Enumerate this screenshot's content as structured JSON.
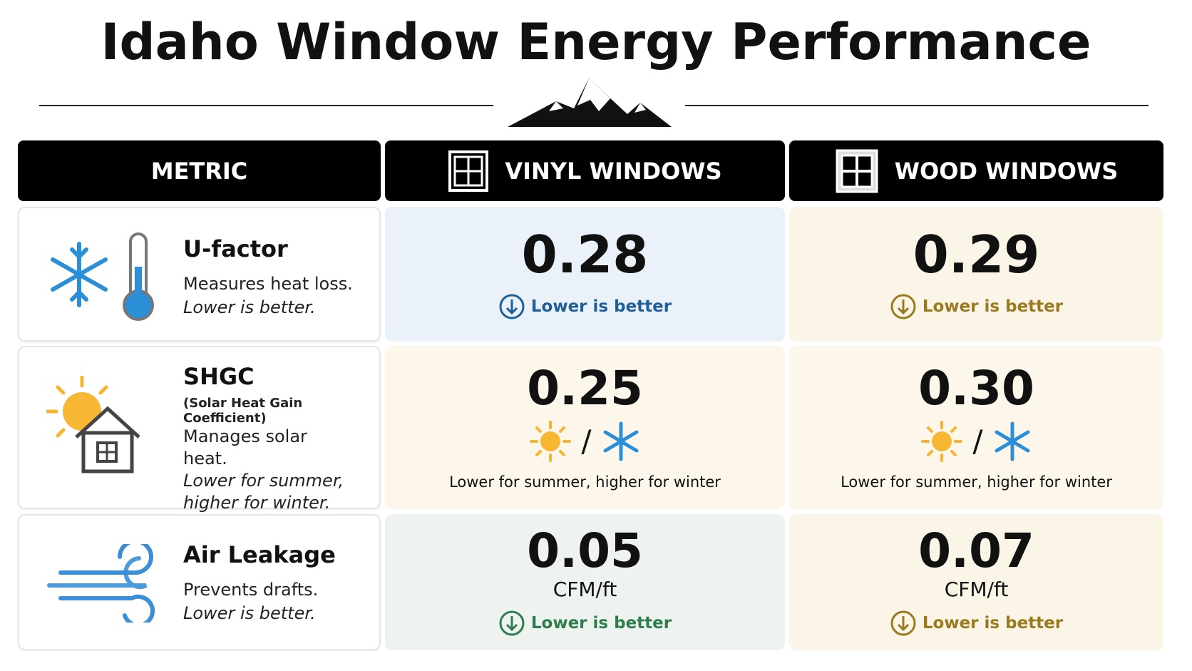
{
  "title": "Idaho Window Energy Performance",
  "table": {
    "headers": [
      "METRIC",
      "VINYL WINDOWS",
      "WOOD WINDOWS"
    ],
    "rows": [
      {
        "metric": "U-factor",
        "description": "Measures heat loss.",
        "note": "Lower is better.",
        "vinyl": {
          "value": "0.28",
          "caption": "Lower is better"
        },
        "wood": {
          "value": "0.29",
          "caption": "Lower is better"
        }
      },
      {
        "metric": "SHGC",
        "subtitle": "(Solar Heat Gain Coefficient)",
        "description": "Manages solar heat.",
        "note": "Lower for summer, higher for winter.",
        "vinyl": {
          "value": "0.25",
          "separator": "/",
          "caption": "Lower for summer, higher for winter"
        },
        "wood": {
          "value": "0.30",
          "separator": "/",
          "caption": "Lower for summer, higher for winter"
        }
      },
      {
        "metric": "Air Leakage",
        "description": "Prevents drafts.",
        "note": "Lower is better.",
        "vinyl": {
          "value": "0.05",
          "unit": "CFM/ft",
          "caption": "Lower is better"
        },
        "wood": {
          "value": "0.07",
          "unit": "CFM/ft",
          "caption": "Lower is better"
        }
      }
    ]
  }
}
